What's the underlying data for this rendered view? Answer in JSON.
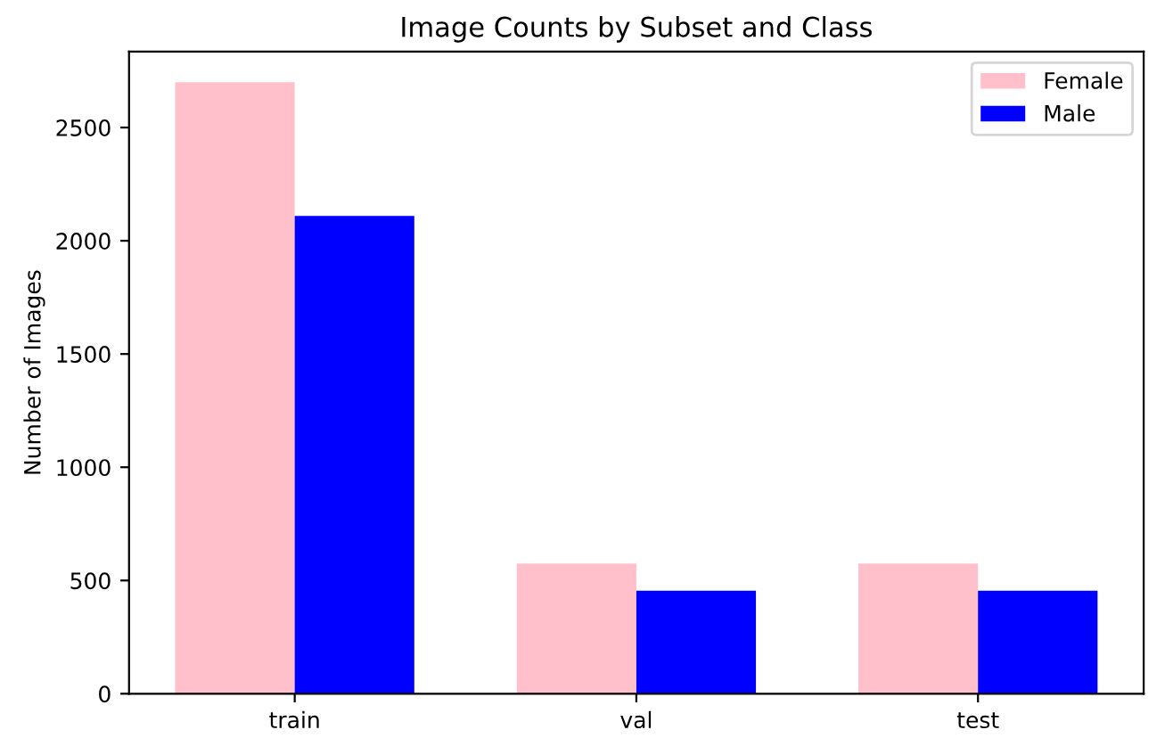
{
  "chart_data": {
    "type": "bar",
    "title": "Image Counts by Subset and Class",
    "ylabel": "Number of Images",
    "categories": [
      "train",
      "val",
      "test"
    ],
    "series": [
      {
        "name": "Female",
        "color": "#ffc0cb",
        "values": [
          2700,
          575,
          575
        ]
      },
      {
        "name": "Male",
        "color": "#0000ff",
        "values": [
          2110,
          455,
          455
        ]
      }
    ],
    "ylim": [
      0,
      2835
    ],
    "yticks": [
      0,
      500,
      1000,
      1500,
      2000,
      2500
    ],
    "legend": "top right"
  }
}
